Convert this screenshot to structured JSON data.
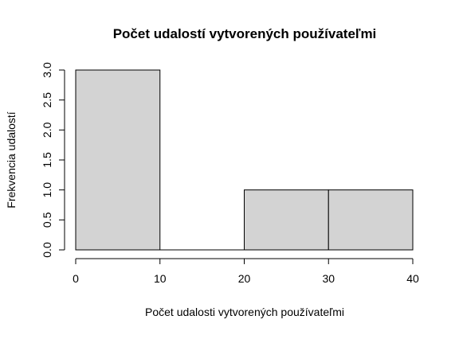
{
  "chart_data": {
    "type": "bar",
    "title": "Počet udalostí vytvorených používateľmi",
    "xlabel": "Počet udalosti vytvorených používateľmi",
    "ylabel": "Frekvencia udalostí",
    "bins": [
      [
        0,
        10
      ],
      [
        10,
        20
      ],
      [
        20,
        30
      ],
      [
        30,
        40
      ]
    ],
    "values": [
      3,
      0,
      1,
      1
    ],
    "xlim": [
      0,
      40
    ],
    "ylim": [
      0,
      3
    ],
    "x_ticks": [
      "0",
      "10",
      "20",
      "30",
      "40"
    ],
    "y_ticks": [
      "0.0",
      "0.5",
      "1.0",
      "1.5",
      "2.0",
      "2.5",
      "3.0"
    ],
    "bar_fill": "#d3d3d3",
    "bar_stroke": "#000000",
    "grid": false
  }
}
